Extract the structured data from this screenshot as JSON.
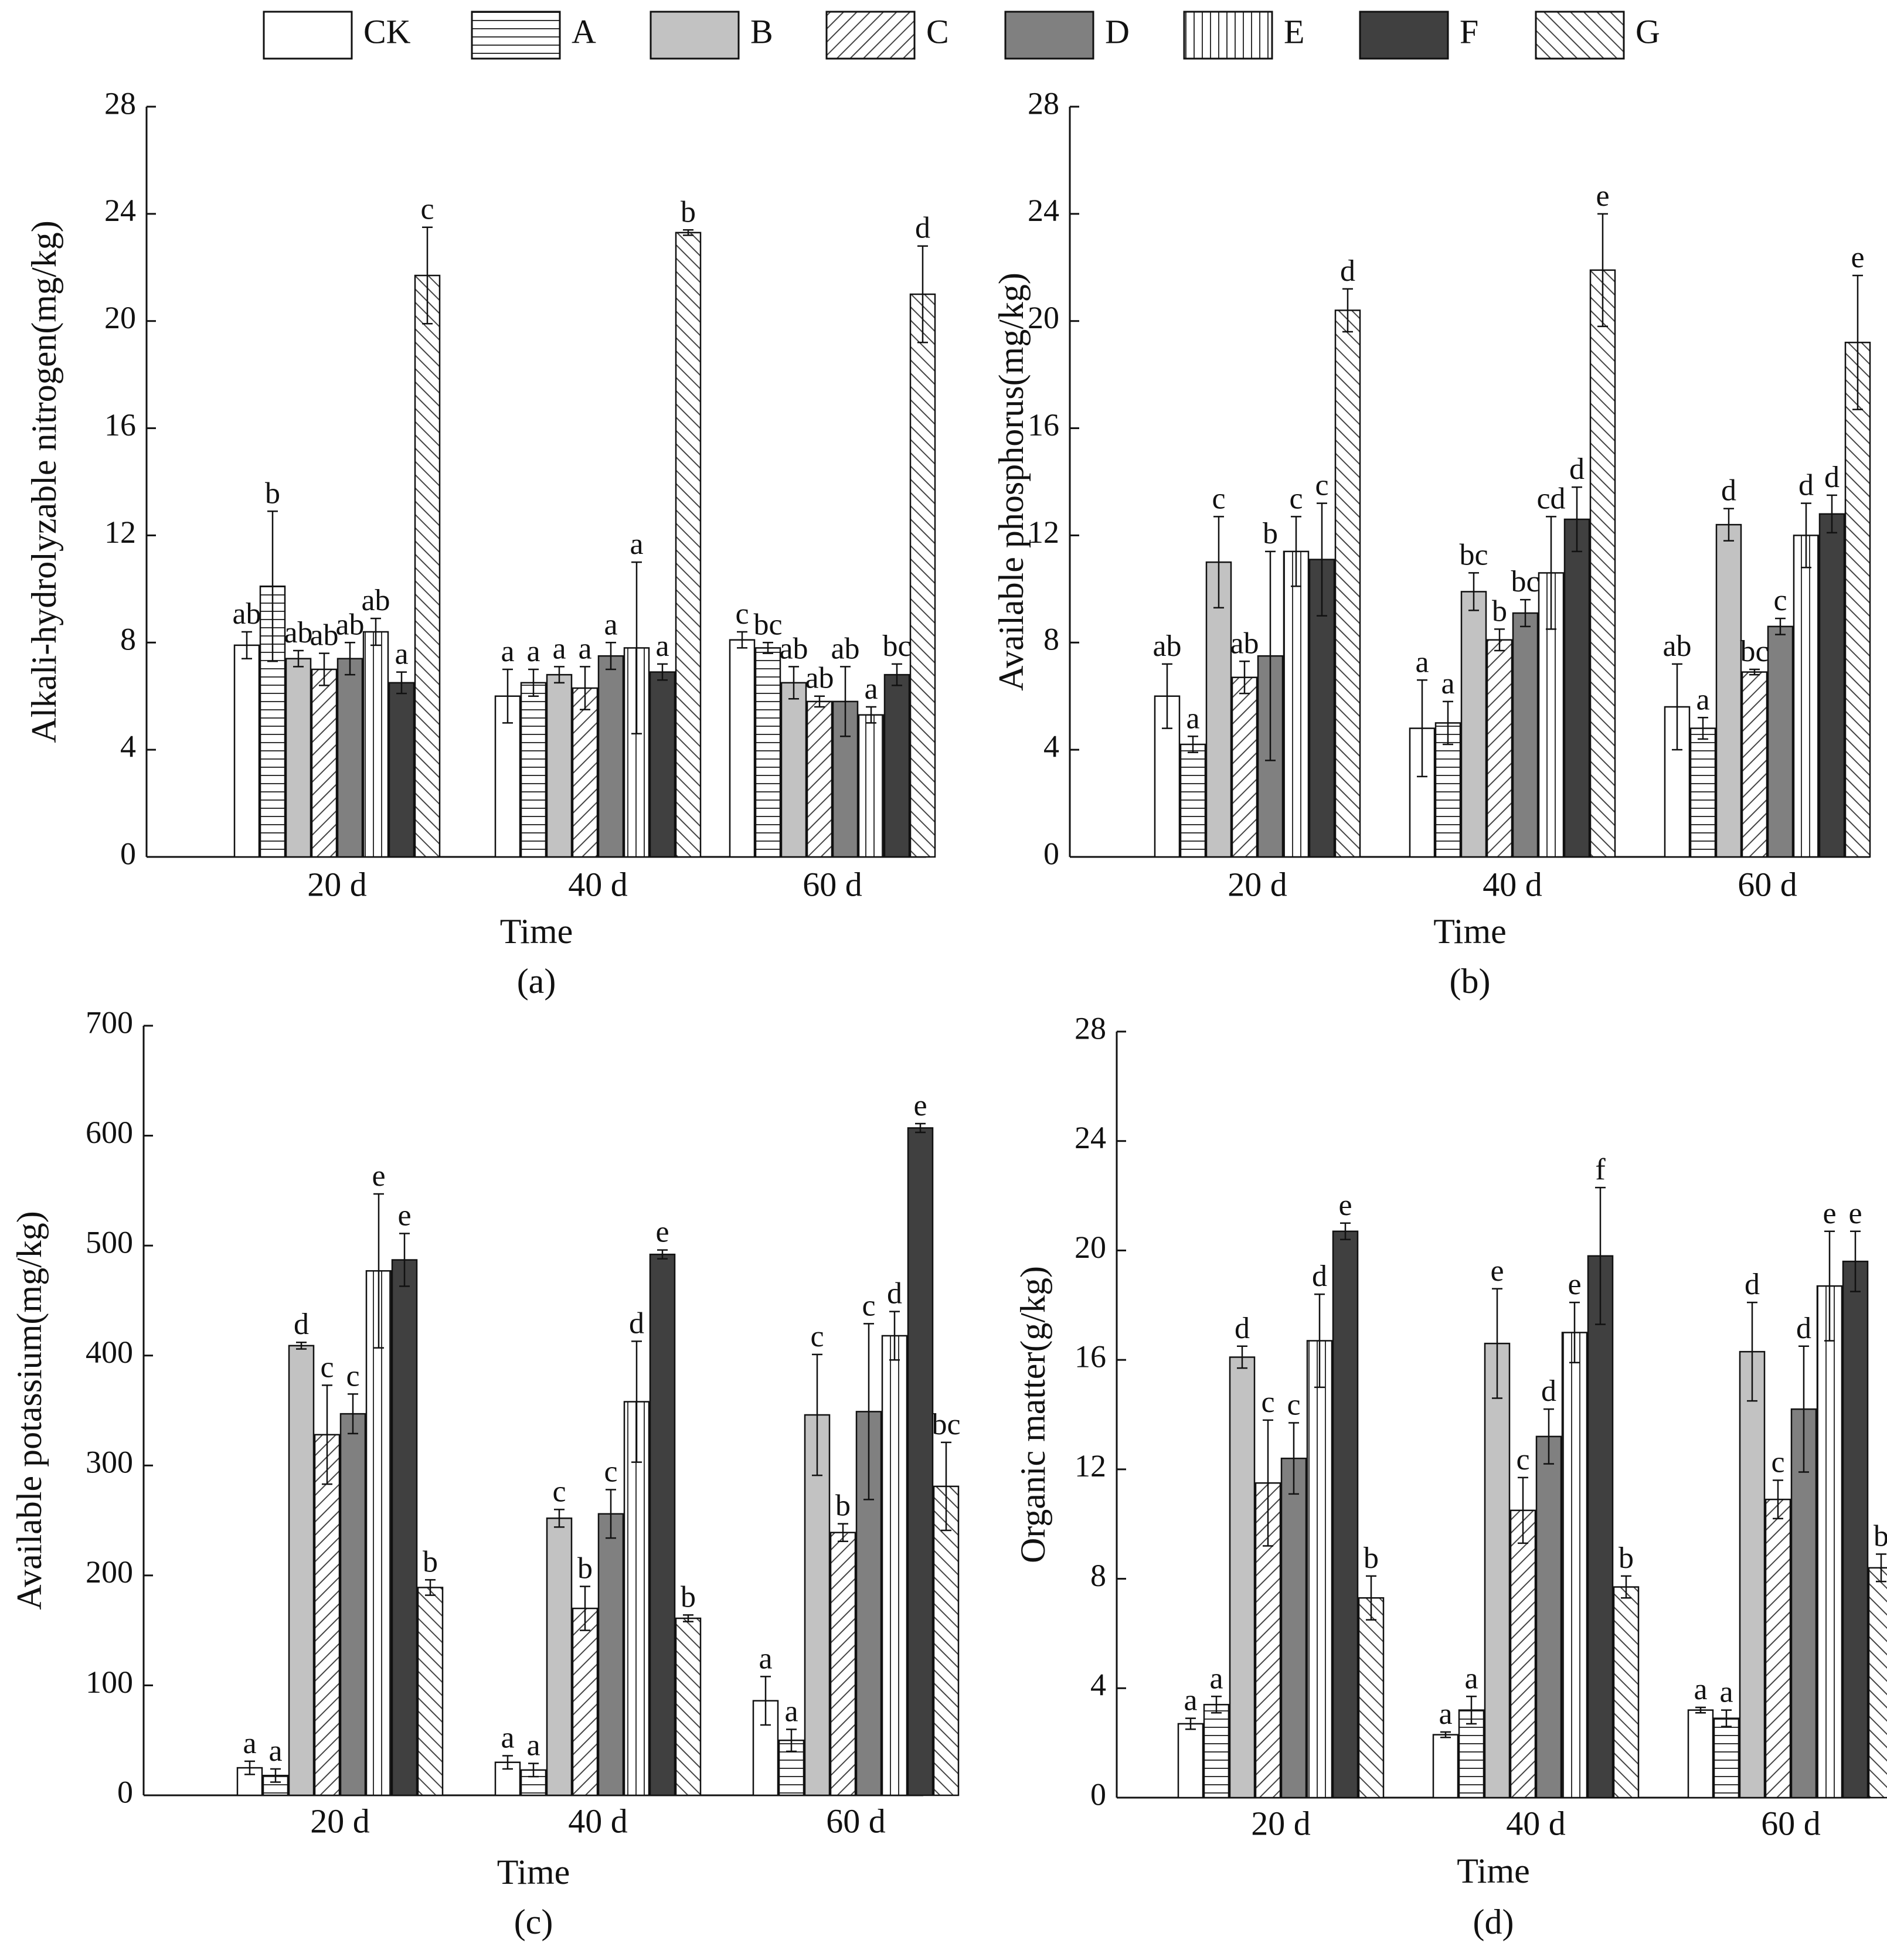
{
  "colors": {
    "ink": "#111111",
    "bar_B": "#c2c2c2",
    "bar_D": "#808080",
    "bar_F": "#404040",
    "white": "#ffffff"
  },
  "legend": [
    {
      "key": "CK",
      "label": "CK",
      "pattern": "solid-white"
    },
    {
      "key": "A",
      "label": "A",
      "pattern": "horizontal-lines"
    },
    {
      "key": "B",
      "label": "B",
      "pattern": "solid-light-gray"
    },
    {
      "key": "C",
      "label": "C",
      "pattern": "diagonal-forward"
    },
    {
      "key": "D",
      "label": "D",
      "pattern": "solid-mid-gray"
    },
    {
      "key": "E",
      "label": "E",
      "pattern": "vertical-lines"
    },
    {
      "key": "F",
      "label": "F",
      "pattern": "solid-dark-gray"
    },
    {
      "key": "G",
      "label": "G",
      "pattern": "diagonal-backward"
    }
  ],
  "chart_data": [
    {
      "type": "bar",
      "panel_label": "(a)",
      "xlabel": "Time",
      "ylabel": "Alkali-hydrolyzable nitrogen(mg/kg)",
      "ylim": [
        0,
        28
      ],
      "yticks": [
        0,
        4,
        8,
        12,
        16,
        20,
        24,
        28
      ],
      "categories": [
        "20 d",
        "40 d",
        "60 d"
      ],
      "series": [
        {
          "name": "CK",
          "values": [
            7.9,
            6.0,
            8.1
          ],
          "errors": [
            0.5,
            1.0,
            0.3
          ],
          "letters": [
            "ab",
            "a",
            "c"
          ]
        },
        {
          "name": "A",
          "values": [
            10.1,
            6.5,
            7.8
          ],
          "errors": [
            2.8,
            0.5,
            0.2
          ],
          "letters": [
            "b",
            "a",
            "bc"
          ]
        },
        {
          "name": "B",
          "values": [
            7.4,
            6.8,
            6.5
          ],
          "errors": [
            0.3,
            0.3,
            0.6
          ],
          "letters": [
            "ab",
            "a",
            "ab"
          ]
        },
        {
          "name": "C",
          "values": [
            7.0,
            6.3,
            5.8
          ],
          "errors": [
            0.6,
            0.8,
            0.2
          ],
          "letters": [
            "ab",
            "a",
            "ab"
          ]
        },
        {
          "name": "D",
          "values": [
            7.4,
            7.5,
            5.8
          ],
          "errors": [
            0.6,
            0.5,
            1.3
          ],
          "letters": [
            "ab",
            "a",
            "ab"
          ]
        },
        {
          "name": "E",
          "values": [
            8.4,
            7.8,
            5.3
          ],
          "errors": [
            0.5,
            3.2,
            0.3
          ],
          "letters": [
            "ab",
            "a",
            "a"
          ]
        },
        {
          "name": "F",
          "values": [
            6.5,
            6.9,
            6.8
          ],
          "errors": [
            0.4,
            0.3,
            0.4
          ],
          "letters": [
            "a",
            "a",
            "bc"
          ]
        },
        {
          "name": "G",
          "values": [
            21.7,
            23.3,
            21.0
          ],
          "errors": [
            1.8,
            0.1,
            1.8
          ],
          "letters": [
            "c",
            "b",
            "d"
          ]
        }
      ]
    },
    {
      "type": "bar",
      "panel_label": "(b)",
      "xlabel": "Time",
      "ylabel": "Available phosphorus(mg/kg)",
      "ylim": [
        0,
        28
      ],
      "yticks": [
        0,
        4,
        8,
        12,
        16,
        20,
        24,
        28
      ],
      "categories": [
        "20 d",
        "40 d",
        "60 d"
      ],
      "series": [
        {
          "name": "CK",
          "values": [
            6.0,
            4.8,
            5.6
          ],
          "errors": [
            1.2,
            1.8,
            1.6
          ],
          "letters": [
            "ab",
            "a",
            "ab"
          ]
        },
        {
          "name": "A",
          "values": [
            4.2,
            5.0,
            4.8
          ],
          "errors": [
            0.3,
            0.8,
            0.4
          ],
          "letters": [
            "a",
            "a",
            "a"
          ]
        },
        {
          "name": "B",
          "values": [
            11.0,
            9.9,
            12.4
          ],
          "errors": [
            1.7,
            0.7,
            0.6
          ],
          "letters": [
            "c",
            "bc",
            "d"
          ]
        },
        {
          "name": "C",
          "values": [
            6.7,
            8.1,
            6.9
          ],
          "errors": [
            0.6,
            0.4,
            0.1
          ],
          "letters": [
            "ab",
            "b",
            "bc"
          ]
        },
        {
          "name": "D",
          "values": [
            7.5,
            9.1,
            8.6
          ],
          "errors": [
            3.9,
            0.5,
            0.3
          ],
          "letters": [
            "b",
            "bc",
            "c"
          ]
        },
        {
          "name": "E",
          "values": [
            11.4,
            10.6,
            12.0
          ],
          "errors": [
            1.3,
            2.1,
            1.2
          ],
          "letters": [
            "c",
            "cd",
            "d"
          ]
        },
        {
          "name": "F",
          "values": [
            11.1,
            12.6,
            12.8
          ],
          "errors": [
            2.1,
            1.2,
            0.7
          ],
          "letters": [
            "c",
            "d",
            "d"
          ]
        },
        {
          "name": "G",
          "values": [
            20.4,
            21.9,
            19.2
          ],
          "errors": [
            0.8,
            2.1,
            2.5
          ],
          "letters": [
            "d",
            "e",
            "e"
          ]
        }
      ]
    },
    {
      "type": "bar",
      "panel_label": "(c)",
      "xlabel": "Time",
      "ylabel": "Available potassium(mg/kg)",
      "ylim": [
        0,
        700
      ],
      "yticks": [
        0,
        100,
        200,
        300,
        400,
        500,
        600,
        700
      ],
      "categories": [
        "20 d",
        "40 d",
        "60 d"
      ],
      "series": [
        {
          "name": "CK",
          "values": [
            25,
            30,
            86
          ],
          "errors": [
            6,
            6,
            22
          ],
          "letters": [
            "a",
            "a",
            "a"
          ]
        },
        {
          "name": "A",
          "values": [
            18,
            23,
            50
          ],
          "errors": [
            6,
            6,
            10
          ],
          "letters": [
            "a",
            "a",
            "a"
          ]
        },
        {
          "name": "B",
          "values": [
            409,
            252,
            346
          ],
          "errors": [
            3,
            8,
            55
          ],
          "letters": [
            "d",
            "c",
            "c"
          ]
        },
        {
          "name": "C",
          "values": [
            328,
            170,
            239
          ],
          "errors": [
            45,
            20,
            8
          ],
          "letters": [
            "c",
            "b",
            "b"
          ]
        },
        {
          "name": "D",
          "values": [
            347,
            256,
            349
          ],
          "errors": [
            18,
            22,
            80
          ],
          "letters": [
            "c",
            "c",
            "c"
          ]
        },
        {
          "name": "E",
          "values": [
            477,
            358,
            418
          ],
          "errors": [
            70,
            55,
            22
          ],
          "letters": [
            "e",
            "d",
            "d"
          ]
        },
        {
          "name": "F",
          "values": [
            487,
            492,
            607
          ],
          "errors": [
            24,
            4,
            4
          ],
          "letters": [
            "e",
            "e",
            "e"
          ]
        },
        {
          "name": "G",
          "values": [
            189,
            161,
            281
          ],
          "errors": [
            7,
            3,
            40
          ],
          "letters": [
            "b",
            "b",
            "bc"
          ]
        }
      ]
    },
    {
      "type": "bar",
      "panel_label": "(d)",
      "xlabel": "Time",
      "ylabel": "Organic matter(g/kg)",
      "ylim": [
        0,
        28
      ],
      "yticks": [
        0,
        4,
        8,
        12,
        16,
        20,
        24,
        28
      ],
      "categories": [
        "20 d",
        "40 d",
        "60 d"
      ],
      "series": [
        {
          "name": "CK",
          "values": [
            2.7,
            2.3,
            3.2
          ],
          "errors": [
            0.2,
            0.1,
            0.1
          ],
          "letters": [
            "a",
            "a",
            "a"
          ]
        },
        {
          "name": "A",
          "values": [
            3.4,
            3.2,
            2.9
          ],
          "errors": [
            0.3,
            0.5,
            0.3
          ],
          "letters": [
            "a",
            "a",
            "a"
          ]
        },
        {
          "name": "B",
          "values": [
            16.1,
            16.6,
            16.3
          ],
          "errors": [
            0.4,
            2.0,
            1.8
          ],
          "letters": [
            "d",
            "e",
            "d"
          ]
        },
        {
          "name": "C",
          "values": [
            11.5,
            10.5,
            10.9
          ],
          "errors": [
            2.3,
            1.2,
            0.7
          ],
          "letters": [
            "c",
            "c",
            "c"
          ]
        },
        {
          "name": "D",
          "values": [
            12.4,
            13.2,
            14.2
          ],
          "errors": [
            1.3,
            1.0,
            2.3
          ],
          "letters": [
            "c",
            "d",
            "d"
          ]
        },
        {
          "name": "E",
          "values": [
            16.7,
            17.0,
            18.7
          ],
          "errors": [
            1.7,
            1.1,
            2.0
          ],
          "letters": [
            "d",
            "e",
            "e"
          ]
        },
        {
          "name": "F",
          "values": [
            20.7,
            19.8,
            19.6
          ],
          "errors": [
            0.3,
            2.5,
            1.1
          ],
          "letters": [
            "e",
            "f",
            "e"
          ]
        },
        {
          "name": "G",
          "values": [
            7.3,
            7.7,
            8.4
          ],
          "errors": [
            0.8,
            0.4,
            0.5
          ],
          "letters": [
            "b",
            "b",
            "b"
          ]
        }
      ]
    }
  ]
}
